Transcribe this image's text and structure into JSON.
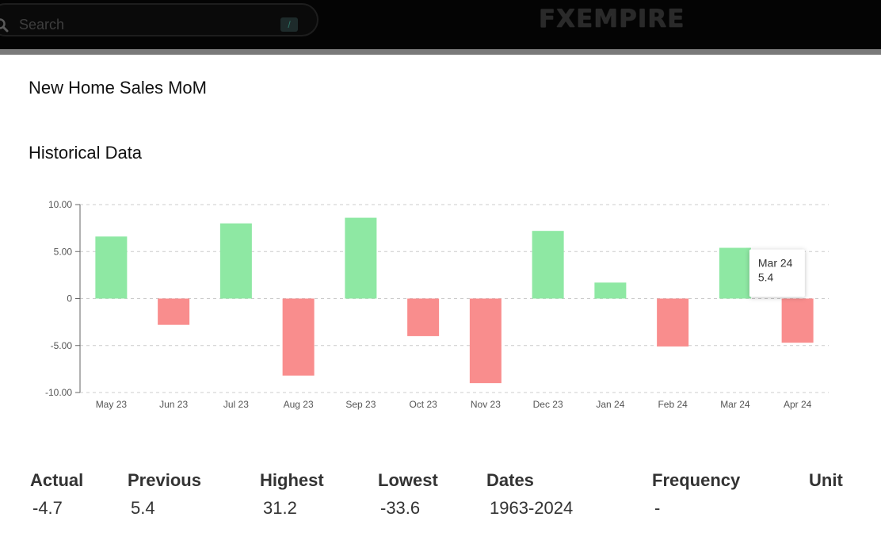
{
  "header": {
    "search_placeholder": "Search",
    "shortcut_key": "/",
    "logo": "FXEMPIRE"
  },
  "page": {
    "title": "New Home Sales MoM",
    "section": "Historical Data"
  },
  "colors": {
    "positive": "#8ee8a3",
    "negative": "#f98d8d",
    "grid": "#cccccc"
  },
  "chart_data": {
    "type": "bar",
    "categories": [
      "May 23",
      "Jun 23",
      "Jul 23",
      "Aug 23",
      "Sep 23",
      "Oct 23",
      "Nov 23",
      "Dec 23",
      "Jan 24",
      "Feb 24",
      "Mar 24",
      "Apr 24"
    ],
    "values": [
      6.6,
      -2.8,
      8.0,
      -8.2,
      8.6,
      -4.0,
      -9.0,
      7.2,
      1.7,
      -5.1,
      5.4,
      -4.7
    ],
    "ylim": [
      -10,
      10
    ],
    "yticks": [
      "10.00",
      "5.00",
      "0",
      "-5.00",
      "-10.00"
    ],
    "ytick_values": [
      10,
      5,
      0,
      -5,
      -10
    ],
    "grid": true,
    "tooltip": {
      "label": "Mar 24",
      "value": "5.4"
    }
  },
  "stats": [
    {
      "label": "Actual",
      "value": "-4.7"
    },
    {
      "label": "Previous",
      "value": "5.4"
    },
    {
      "label": "Highest",
      "value": "31.2"
    },
    {
      "label": "Lowest",
      "value": "-33.6"
    },
    {
      "label": "Dates",
      "value": "1963-2024"
    },
    {
      "label": "Frequency",
      "value": "-"
    },
    {
      "label": "Unit",
      "value": ""
    }
  ]
}
